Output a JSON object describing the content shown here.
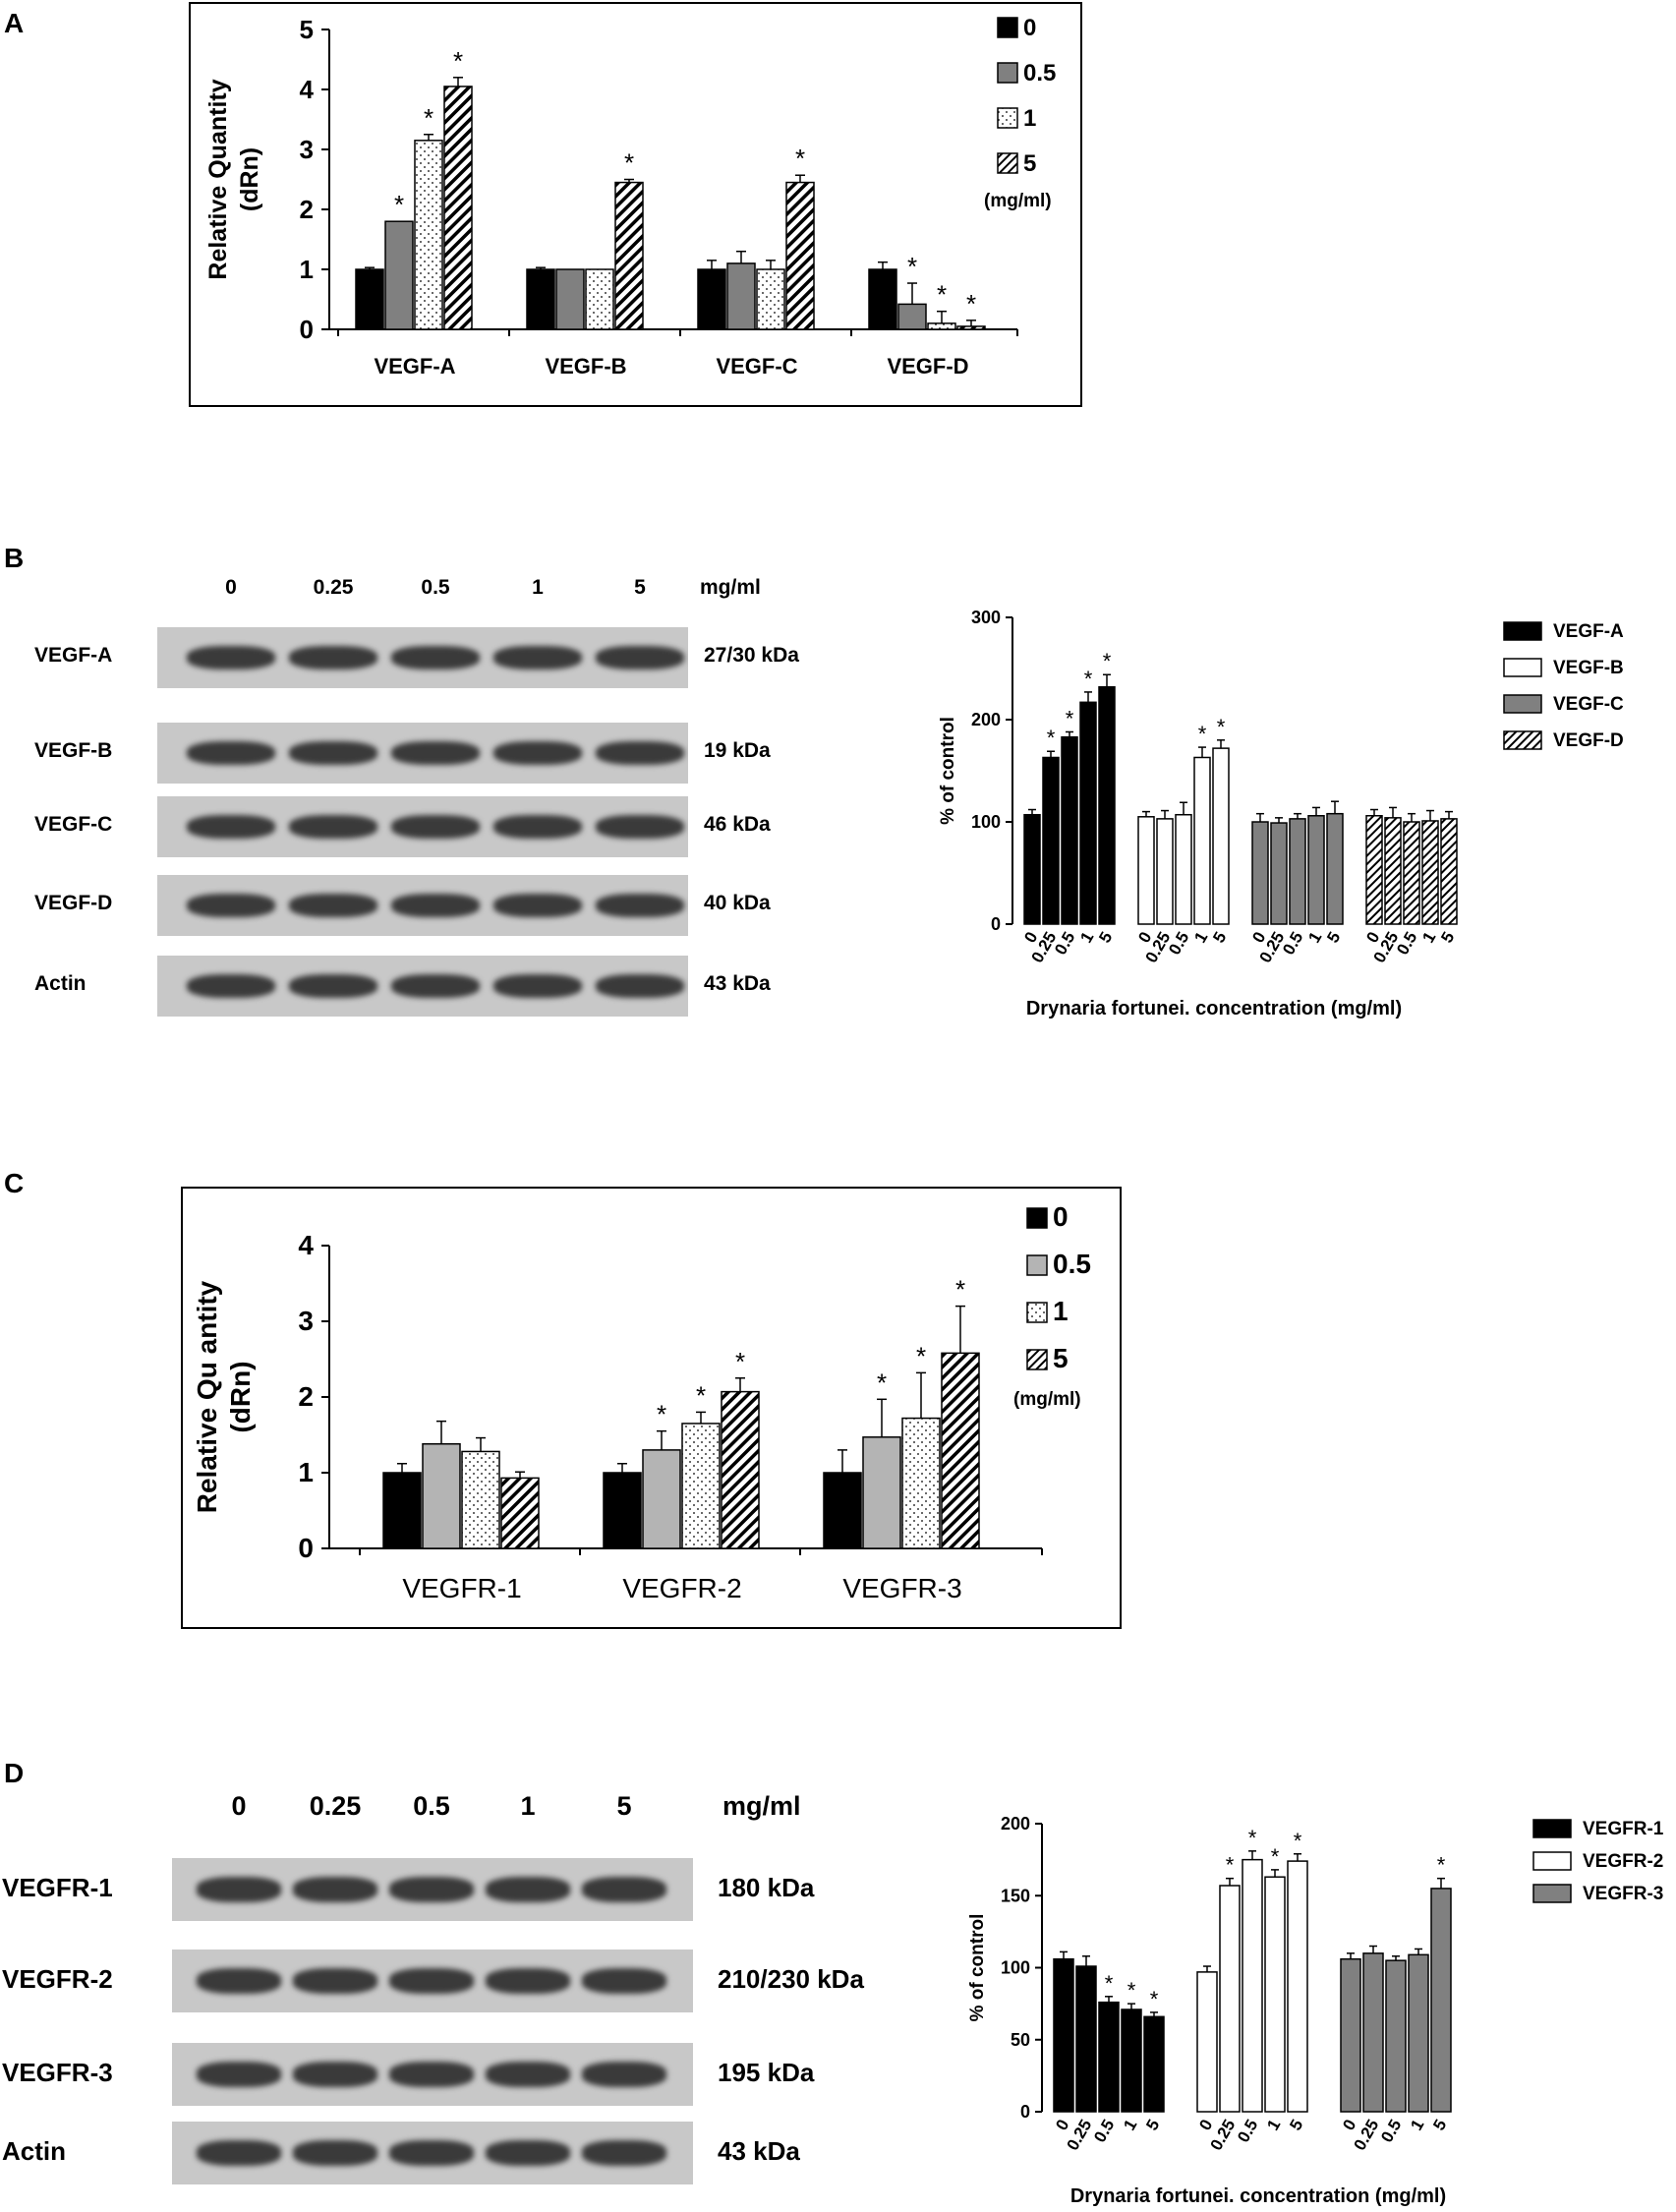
{
  "panels": {
    "a": {
      "letter": "A"
    },
    "b": {
      "letter": "B",
      "conc_labels": [
        "0",
        "0.25",
        "0.5",
        "1",
        "5"
      ],
      "unit": "mg/ml",
      "rows": [
        {
          "name": "VEGF-A",
          "size": "27/30 kDa"
        },
        {
          "name": "VEGF-B",
          "size": "19 kDa"
        },
        {
          "name": "VEGF-C",
          "size": "46 kDa"
        },
        {
          "name": "VEGF-D",
          "size": "40 kDa"
        },
        {
          "name": "Actin",
          "size": "43 kDa"
        }
      ]
    },
    "c": {
      "letter": "C"
    },
    "d": {
      "letter": "D",
      "conc_labels": [
        "0",
        "0.25",
        "0.5",
        "1",
        "5"
      ],
      "unit": "mg/ml",
      "rows": [
        {
          "name": "VEGFR-1",
          "size": "180 kDa"
        },
        {
          "name": "VEGFR-2",
          "size": "210/230 kDa"
        },
        {
          "name": "VEGFR-3",
          "size": "195 kDa"
        },
        {
          "name": "Actin",
          "size": "43 kDa"
        }
      ]
    }
  },
  "chart_data": [
    {
      "id": "A",
      "type": "bar",
      "categories": [
        "VEGF-A",
        "VEGF-B",
        "VEGF-C",
        "VEGF-D"
      ],
      "series": [
        {
          "name": "0",
          "pattern": "black",
          "values": [
            1.0,
            1.0,
            1.0,
            1.0
          ],
          "errors": [
            0.03,
            0.03,
            0.15,
            0.12
          ],
          "sig": [
            false,
            false,
            false,
            false
          ]
        },
        {
          "name": "0.5",
          "pattern": "gray",
          "values": [
            1.8,
            1.0,
            1.1,
            0.42
          ],
          "errors": [
            0.0,
            0.0,
            0.2,
            0.35
          ],
          "sig": [
            true,
            false,
            false,
            true
          ]
        },
        {
          "name": "1",
          "pattern": "dots",
          "values": [
            3.15,
            1.0,
            1.0,
            0.1
          ],
          "errors": [
            0.1,
            0.0,
            0.15,
            0.2
          ],
          "sig": [
            true,
            false,
            false,
            true
          ]
        },
        {
          "name": "5",
          "pattern": "hatch",
          "values": [
            4.05,
            2.45,
            2.45,
            0.05
          ],
          "errors": [
            0.15,
            0.05,
            0.12,
            0.1
          ],
          "sig": [
            true,
            true,
            true,
            true
          ]
        }
      ],
      "legend_unit": "(mg/ml)",
      "ylabel": [
        "Relative Quantity",
        "(dRn)"
      ],
      "yticks": [
        0,
        1,
        2,
        3,
        4,
        5
      ],
      "ylim": [
        0,
        5
      ],
      "sig_marker": "*"
    },
    {
      "id": "B",
      "type": "bar",
      "groups": [
        "VEGF-A",
        "VEGF-B",
        "VEGF-C",
        "VEGF-D"
      ],
      "x_tick_labels": [
        "0",
        "0.25",
        "0.5",
        "1",
        "5"
      ],
      "series": [
        {
          "name": "VEGF-A",
          "pattern": "black",
          "values": [
            107,
            163,
            183,
            217,
            232
          ],
          "errors": [
            5,
            6,
            5,
            10,
            12
          ],
          "sig": [
            false,
            true,
            true,
            true,
            true
          ]
        },
        {
          "name": "VEGF-B",
          "pattern": "white",
          "values": [
            105,
            103,
            107,
            163,
            172
          ],
          "errors": [
            5,
            8,
            12,
            10,
            8
          ],
          "sig": [
            false,
            false,
            false,
            true,
            true
          ]
        },
        {
          "name": "VEGF-C",
          "pattern": "gray",
          "values": [
            100,
            99,
            103,
            106,
            108
          ],
          "errors": [
            8,
            5,
            5,
            8,
            12
          ],
          "sig": [
            false,
            false,
            false,
            false,
            false
          ]
        },
        {
          "name": "VEGF-D",
          "pattern": "hatch",
          "values": [
            106,
            104,
            100,
            101,
            103
          ],
          "errors": [
            6,
            10,
            8,
            10,
            7
          ],
          "sig": [
            false,
            false,
            false,
            false,
            false
          ]
        }
      ],
      "xlabel": "Drynaria fortunei. concentration (mg/ml)",
      "ylabel": "% of control",
      "yticks": [
        0,
        100,
        200,
        300
      ],
      "ylim": [
        0,
        300
      ],
      "sig_marker": "*"
    },
    {
      "id": "C",
      "type": "bar",
      "categories": [
        "VEGFR-1",
        "VEGFR-2",
        "VEGFR-3"
      ],
      "series": [
        {
          "name": "0",
          "pattern": "black",
          "values": [
            1.0,
            1.0,
            1.0
          ],
          "errors": [
            0.12,
            0.12,
            0.3
          ],
          "sig": [
            false,
            false,
            false
          ]
        },
        {
          "name": "0.5",
          "pattern": "lightgray",
          "values": [
            1.38,
            1.3,
            1.47
          ],
          "errors": [
            0.3,
            0.25,
            0.5
          ],
          "sig": [
            false,
            true,
            true
          ]
        },
        {
          "name": "1",
          "pattern": "dots",
          "values": [
            1.28,
            1.65,
            1.72
          ],
          "errors": [
            0.18,
            0.15,
            0.6
          ],
          "sig": [
            false,
            true,
            true
          ]
        },
        {
          "name": "5",
          "pattern": "hatch",
          "values": [
            0.93,
            2.07,
            2.58
          ],
          "errors": [
            0.08,
            0.18,
            0.62
          ],
          "sig": [
            false,
            true,
            true
          ]
        }
      ],
      "legend_unit": "(mg/ml)",
      "ylabel": [
        "Relative Qu antity",
        "(dRn)"
      ],
      "yticks": [
        0,
        1,
        2,
        3,
        4
      ],
      "ylim": [
        0,
        4
      ],
      "sig_marker": "*"
    },
    {
      "id": "D",
      "type": "bar",
      "groups": [
        "VEGFR-1",
        "VEGFR-2",
        "VEGFR-3"
      ],
      "x_tick_labels": [
        "0",
        "0.25",
        "0.5",
        "1",
        "5"
      ],
      "series": [
        {
          "name": "VEGFR-1",
          "pattern": "black",
          "values": [
            106,
            101,
            76,
            71,
            66
          ],
          "errors": [
            5,
            7,
            4,
            4,
            3
          ],
          "sig": [
            false,
            false,
            true,
            true,
            true
          ]
        },
        {
          "name": "VEGFR-2",
          "pattern": "white",
          "values": [
            97,
            157,
            175,
            163,
            174
          ],
          "errors": [
            4,
            5,
            6,
            5,
            5
          ],
          "sig": [
            false,
            true,
            true,
            true,
            true
          ]
        },
        {
          "name": "VEGFR-3",
          "pattern": "gray",
          "values": [
            106,
            110,
            105,
            109,
            155
          ],
          "errors": [
            4,
            5,
            3,
            4,
            7
          ],
          "sig": [
            false,
            false,
            false,
            false,
            true
          ]
        }
      ],
      "xlabel": "Drynaria fortunei. concentration (mg/ml)",
      "ylabel": "% of control",
      "yticks": [
        0,
        50,
        100,
        150,
        200
      ],
      "ylim": [
        0,
        200
      ],
      "sig_marker": "*"
    }
  ]
}
